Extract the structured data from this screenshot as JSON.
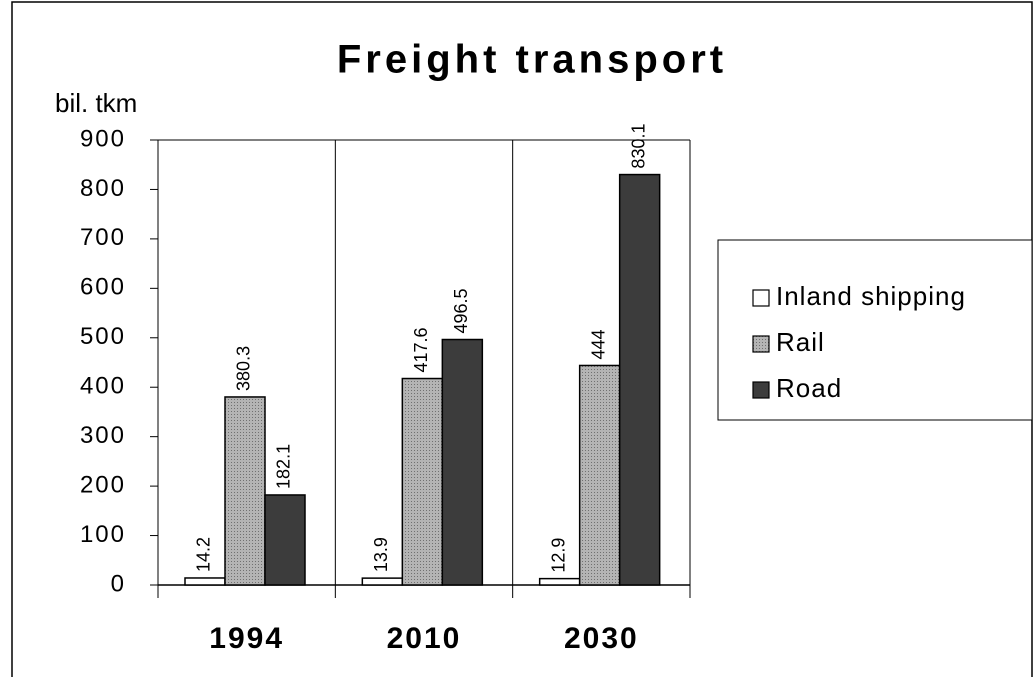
{
  "chart_data": {
    "type": "bar",
    "title": "Freight transport",
    "y_label": "bil. tkm",
    "categories": [
      "1994",
      "2010",
      "2030"
    ],
    "series": [
      {
        "name": "Inland shipping",
        "color": "#ffffff",
        "values": [
          14.2,
          13.9,
          12.9
        ]
      },
      {
        "name": "Rail",
        "color": "#a6a6a6",
        "values": [
          380.3,
          417.6,
          444
        ]
      },
      {
        "name": "Road",
        "color": "#3c3c3c",
        "values": [
          182.1,
          496.5,
          830.1
        ]
      }
    ],
    "ylim": [
      0,
      900
    ],
    "yticks": [
      0,
      100,
      200,
      300,
      400,
      500,
      600,
      700,
      800,
      900
    ],
    "legend": "right"
  }
}
